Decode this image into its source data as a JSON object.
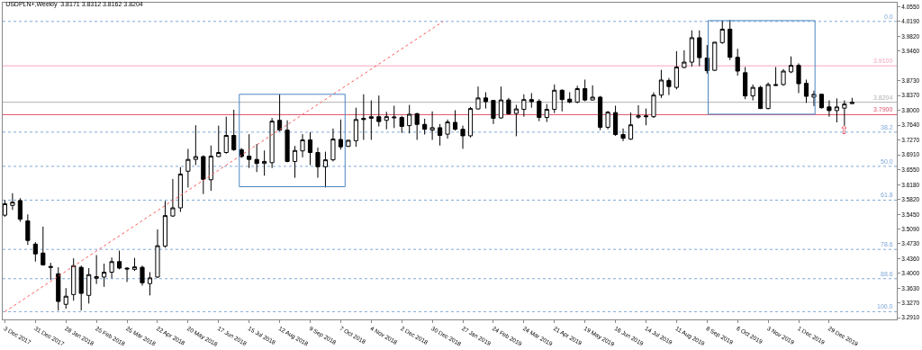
{
  "chart_data": {
    "type": "candlestick",
    "title": "USDPLN+,Weekly  3.8171 3.8312 3.8162 3.8204",
    "color": "#000000",
    "x": [
      "2017-12-03",
      "2017-12-10",
      "2017-12-17",
      "2017-12-24",
      "2017-12-31",
      "2018-01-07",
      "2018-01-14",
      "2018-01-21",
      "2018-01-28",
      "2018-02-04",
      "2018-02-11",
      "2018-02-18",
      "2018-02-25",
      "2018-03-04",
      "2018-03-11",
      "2018-03-18",
      "2018-03-25",
      "2018-04-01",
      "2018-04-08",
      "2018-04-15",
      "2018-04-22",
      "2018-04-29",
      "2018-05-06",
      "2018-05-13",
      "2018-05-20",
      "2018-05-27",
      "2018-06-03",
      "2018-06-10",
      "2018-06-17",
      "2018-06-24",
      "2018-07-01",
      "2018-07-08",
      "2018-07-15",
      "2018-07-22",
      "2018-07-29",
      "2018-08-05",
      "2018-08-12",
      "2018-08-19",
      "2018-08-26",
      "2018-09-02",
      "2018-09-09",
      "2018-09-16",
      "2018-09-23",
      "2018-09-30",
      "2018-10-07",
      "2018-10-14",
      "2018-10-21",
      "2018-10-28",
      "2018-11-04",
      "2018-11-11",
      "2018-11-18",
      "2018-11-25",
      "2018-12-02",
      "2018-12-09",
      "2018-12-16",
      "2018-12-23",
      "2018-12-30",
      "2019-01-06",
      "2019-01-13",
      "2019-01-20",
      "2019-01-27",
      "2019-02-03",
      "2019-02-10",
      "2019-02-17",
      "2019-02-24",
      "2019-03-03",
      "2019-03-10",
      "2019-03-17",
      "2019-03-24",
      "2019-03-31",
      "2019-04-07",
      "2019-04-14",
      "2019-04-21",
      "2019-04-28",
      "2019-05-05",
      "2019-05-12",
      "2019-05-19",
      "2019-05-26",
      "2019-06-02",
      "2019-06-09",
      "2019-06-16",
      "2019-06-23",
      "2019-06-30",
      "2019-07-07",
      "2019-07-14",
      "2019-07-21",
      "2019-07-28",
      "2019-08-04",
      "2019-08-11",
      "2019-08-18",
      "2019-08-25",
      "2019-09-01",
      "2019-09-08",
      "2019-09-15",
      "2019-09-22",
      "2019-09-29",
      "2019-10-06",
      "2019-10-13",
      "2019-10-20",
      "2019-10-27",
      "2019-11-03",
      "2019-11-10",
      "2019-11-17",
      "2019-11-24",
      "2019-12-01",
      "2019-12-08",
      "2019-12-15",
      "2019-12-22",
      "2019-12-29",
      "2020-01-05",
      "2020-01-12",
      "2020-01-19"
    ],
    "ohlc": [
      [
        3.543,
        3.58,
        3.539,
        3.571
      ],
      [
        3.567,
        3.597,
        3.556,
        3.575
      ],
      [
        3.579,
        3.585,
        3.527,
        3.533
      ],
      [
        3.529,
        3.545,
        3.47,
        3.481
      ],
      [
        3.472,
        3.477,
        3.429,
        3.448
      ],
      [
        3.45,
        3.515,
        3.419,
        3.421
      ],
      [
        3.417,
        3.426,
        3.384,
        3.415
      ],
      [
        3.399,
        3.415,
        3.309,
        3.331
      ],
      [
        3.324,
        3.364,
        3.313,
        3.344
      ],
      [
        3.348,
        3.437,
        3.333,
        3.419
      ],
      [
        3.415,
        3.419,
        3.309,
        3.351
      ],
      [
        3.346,
        3.413,
        3.326,
        3.397
      ],
      [
        3.388,
        3.445,
        3.374,
        3.392
      ],
      [
        3.391,
        3.424,
        3.367,
        3.403
      ],
      [
        3.403,
        3.439,
        3.388,
        3.429
      ],
      [
        3.429,
        3.456,
        3.41,
        3.413
      ],
      [
        3.413,
        3.415,
        3.379,
        3.411
      ],
      [
        3.41,
        3.438,
        3.406,
        3.416
      ],
      [
        3.415,
        3.419,
        3.37,
        3.377
      ],
      [
        3.375,
        3.403,
        3.346,
        3.389
      ],
      [
        3.391,
        3.508,
        3.389,
        3.468
      ],
      [
        3.467,
        3.578,
        3.463,
        3.542
      ],
      [
        3.541,
        3.632,
        3.539,
        3.561
      ],
      [
        3.561,
        3.661,
        3.551,
        3.644
      ],
      [
        3.651,
        3.706,
        3.611,
        3.68
      ],
      [
        3.68,
        3.764,
        3.666,
        3.687
      ],
      [
        3.687,
        3.69,
        3.595,
        3.631
      ],
      [
        3.63,
        3.714,
        3.603,
        3.688
      ],
      [
        3.687,
        3.763,
        3.686,
        3.697
      ],
      [
        3.697,
        3.785,
        3.694,
        3.739
      ],
      [
        3.739,
        3.802,
        3.701,
        3.704
      ],
      [
        3.704,
        3.708,
        3.684,
        3.687
      ],
      [
        3.688,
        3.742,
        3.659,
        3.68
      ],
      [
        3.68,
        3.718,
        3.649,
        3.67
      ],
      [
        3.67,
        3.702,
        3.64,
        3.675
      ],
      [
        3.672,
        3.782,
        3.659,
        3.774
      ],
      [
        3.776,
        3.84,
        3.749,
        3.752
      ],
      [
        3.752,
        3.776,
        3.673,
        3.675
      ],
      [
        3.675,
        3.713,
        3.635,
        3.702
      ],
      [
        3.701,
        3.742,
        3.685,
        3.728
      ],
      [
        3.728,
        3.747,
        3.666,
        3.697
      ],
      [
        3.697,
        3.709,
        3.635,
        3.662
      ],
      [
        3.662,
        3.699,
        3.611,
        3.679
      ],
      [
        3.679,
        3.756,
        3.675,
        3.73
      ],
      [
        3.729,
        3.778,
        3.704,
        3.711
      ],
      [
        3.712,
        3.728,
        3.711,
        3.727
      ],
      [
        3.726,
        3.807,
        3.711,
        3.778
      ],
      [
        3.781,
        3.84,
        3.728,
        3.778
      ],
      [
        3.781,
        3.825,
        3.728,
        3.785
      ],
      [
        3.785,
        3.837,
        3.761,
        3.773
      ],
      [
        3.776,
        3.797,
        3.754,
        3.785
      ],
      [
        3.782,
        3.812,
        3.757,
        3.784
      ],
      [
        3.783,
        3.787,
        3.745,
        3.761
      ],
      [
        3.763,
        3.814,
        3.744,
        3.791
      ],
      [
        3.792,
        3.795,
        3.728,
        3.766
      ],
      [
        3.766,
        3.78,
        3.741,
        3.754
      ],
      [
        3.752,
        3.798,
        3.728,
        3.758
      ],
      [
        3.758,
        3.767,
        3.714,
        3.739
      ],
      [
        3.742,
        3.778,
        3.731,
        3.772
      ],
      [
        3.771,
        3.801,
        3.751,
        3.754
      ],
      [
        3.754,
        3.763,
        3.706,
        3.738
      ],
      [
        3.738,
        3.809,
        3.734,
        3.805
      ],
      [
        3.804,
        3.859,
        3.803,
        3.831
      ],
      [
        3.831,
        3.845,
        3.805,
        3.822
      ],
      [
        3.825,
        3.825,
        3.767,
        3.781
      ],
      [
        3.782,
        3.859,
        3.78,
        3.826
      ],
      [
        3.826,
        3.831,
        3.79,
        3.792
      ],
      [
        3.793,
        3.814,
        3.737,
        3.804
      ],
      [
        3.803,
        3.84,
        3.785,
        3.827
      ],
      [
        3.827,
        3.843,
        3.807,
        3.822
      ],
      [
        3.823,
        3.828,
        3.774,
        3.783
      ],
      [
        3.783,
        3.816,
        3.772,
        3.803
      ],
      [
        3.803,
        3.864,
        3.794,
        3.85
      ],
      [
        3.85,
        3.852,
        3.798,
        3.827
      ],
      [
        3.828,
        3.845,
        3.818,
        3.821
      ],
      [
        3.821,
        3.861,
        3.818,
        3.854
      ],
      [
        3.854,
        3.876,
        3.823,
        3.826
      ],
      [
        3.826,
        3.862,
        3.825,
        3.833
      ],
      [
        3.833,
        3.836,
        3.752,
        3.759
      ],
      [
        3.759,
        3.799,
        3.754,
        3.796
      ],
      [
        3.795,
        3.812,
        3.738,
        3.741
      ],
      [
        3.741,
        3.756,
        3.725,
        3.732
      ],
      [
        3.73,
        3.795,
        3.728,
        3.765
      ],
      [
        3.784,
        3.813,
        3.78,
        3.787
      ],
      [
        3.787,
        3.805,
        3.764,
        3.785
      ],
      [
        3.785,
        3.845,
        3.782,
        3.838
      ],
      [
        3.838,
        3.9,
        3.831,
        3.875
      ],
      [
        3.874,
        3.88,
        3.838,
        3.859
      ],
      [
        3.857,
        3.946,
        3.852,
        3.907
      ],
      [
        3.906,
        3.948,
        3.904,
        3.919
      ],
      [
        3.919,
        3.997,
        3.908,
        3.979
      ],
      [
        3.979,
        3.997,
        3.909,
        3.93
      ],
      [
        3.929,
        3.961,
        3.891,
        3.898
      ],
      [
        3.899,
        3.968,
        3.897,
        3.968
      ],
      [
        3.967,
        4.021,
        3.964,
        4.0
      ],
      [
        4.0,
        4.023,
        3.924,
        3.931
      ],
      [
        3.931,
        3.952,
        3.886,
        3.897
      ],
      [
        3.893,
        3.907,
        3.828,
        3.836
      ],
      [
        3.836,
        3.864,
        3.825,
        3.857
      ],
      [
        3.857,
        3.861,
        3.804,
        3.805
      ],
      [
        3.805,
        3.869,
        3.803,
        3.864
      ],
      [
        3.864,
        3.907,
        3.861,
        3.862
      ],
      [
        3.864,
        3.902,
        3.861,
        3.897
      ],
      [
        3.895,
        3.933,
        3.892,
        3.911
      ],
      [
        3.911,
        3.916,
        3.843,
        3.866
      ],
      [
        3.867,
        3.876,
        3.819,
        3.835
      ],
      [
        3.833,
        3.849,
        3.811,
        3.84
      ],
      [
        3.84,
        3.84,
        3.805,
        3.807
      ],
      [
        3.809,
        3.825,
        3.785,
        3.8
      ],
      [
        3.8,
        3.83,
        3.771,
        3.809
      ],
      [
        3.806,
        3.825,
        3.763,
        3.816
      ],
      [
        3.8171,
        3.8312,
        3.8162,
        3.8204
      ]
    ],
    "series": [
      {
        "type": "line",
        "color": "#ff5a5a",
        "line_style": "dotted",
        "x": [
          "2017-12-03",
          "2019-01-09"
        ],
        "values": [
          3.306,
          4.019
        ]
      },
      {
        "type": "line",
        "color": "#4a86c0",
        "line_style": "solid",
        "x": [
          "2018-07-06",
          "2018-07-06",
          "2018-10-11",
          "2018-10-11"
        ],
        "values": [
          3.613,
          3.84,
          3.84,
          3.613
        ]
      },
      {
        "type": "line",
        "color": "#4a86c0",
        "line_style": "solid",
        "x": [
          "2018-07-06",
          "2018-10-11"
        ],
        "values": [
          3.613,
          3.613
        ]
      },
      {
        "type": "line",
        "color": "#4a86c0",
        "line_style": "solid",
        "x": [
          "2019-09-09",
          "2019-09-09",
          "2019-12-16",
          "2019-12-16"
        ],
        "values": [
          3.791,
          4.021,
          4.021,
          3.791
        ]
      },
      {
        "type": "line",
        "color": "#4a86c0",
        "line_style": "solid",
        "x": [
          "2019-09-09",
          "2019-12-16"
        ],
        "values": [
          3.791,
          3.791
        ]
      }
    ],
    "xlim": [
      "2017-12-01",
      "2020-02-29"
    ],
    "xticks": [
      {
        "value": "2017-12-03",
        "label": "3 Dec 2017"
      },
      {
        "value": "2017-12-31",
        "label": "31 Dec 2017"
      },
      {
        "value": "2018-01-28",
        "label": "28 Jan 2018"
      },
      {
        "value": "2018-02-25",
        "label": "25 Feb 2018"
      },
      {
        "value": "2018-03-25",
        "label": "25 Mar 2018"
      },
      {
        "value": "2018-04-22",
        "label": "22 Apr 2018"
      },
      {
        "value": "2018-05-20",
        "label": "20 May 2018"
      },
      {
        "value": "2018-06-17",
        "label": "17 Jun 2018"
      },
      {
        "value": "2018-07-15",
        "label": "15 Jul 2018"
      },
      {
        "value": "2018-08-12",
        "label": "12 Aug 2018"
      },
      {
        "value": "2018-09-09",
        "label": "9 Sep 2018"
      },
      {
        "value": "2018-10-07",
        "label": "7 Oct 2018"
      },
      {
        "value": "2018-11-04",
        "label": "4 Nov 2018"
      },
      {
        "value": "2018-12-02",
        "label": "2 Dec 2018"
      },
      {
        "value": "2018-12-30",
        "label": "30 Dec 2018"
      },
      {
        "value": "2019-01-27",
        "label": "27 Jan 2019"
      },
      {
        "value": "2019-02-24",
        "label": "24 Feb 2019"
      },
      {
        "value": "2019-03-24",
        "label": "24 Mar 2019"
      },
      {
        "value": "2019-04-21",
        "label": "21 Apr 2019"
      },
      {
        "value": "2019-05-19",
        "label": "19 May 2019"
      },
      {
        "value": "2019-06-16",
        "label": "16 Jun 2019"
      },
      {
        "value": "2019-07-14",
        "label": "14 Jul 2019"
      },
      {
        "value": "2019-08-11",
        "label": "11 Aug 2019"
      },
      {
        "value": "2019-09-08",
        "label": "8 Sep 2019"
      },
      {
        "value": "2019-10-06",
        "label": "6 Oct 2019"
      },
      {
        "value": "2019-11-03",
        "label": "3 Nov 2019"
      },
      {
        "value": "2019-12-01",
        "label": "1 Dec 2019"
      },
      {
        "value": "2019-12-29",
        "label": "29 Dec 2019"
      }
    ],
    "ylim": [
      3.287,
      4.065
    ],
    "yticks": [
      {
        "value": 4.055,
        "label": "4.0550"
      },
      {
        "value": 4.019,
        "label": "4.0190"
      },
      {
        "value": 3.982,
        "label": "3.9820"
      },
      {
        "value": 3.946,
        "label": "3.9460"
      },
      {
        "value": 3.873,
        "label": "3.8730"
      },
      {
        "value": 3.837,
        "label": "3.8370"
      },
      {
        "value": 3.8,
        "label": "3.8000"
      },
      {
        "value": 3.764,
        "label": "3.7640"
      },
      {
        "value": 3.727,
        "label": "3.7270"
      },
      {
        "value": 3.691,
        "label": "3.6910"
      },
      {
        "value": 3.655,
        "label": "3.6550"
      },
      {
        "value": 3.618,
        "label": "3.6180"
      },
      {
        "value": 3.582,
        "label": "3.5820"
      },
      {
        "value": 3.545,
        "label": "3.5450"
      },
      {
        "value": 3.509,
        "label": "3.5090"
      },
      {
        "value": 3.473,
        "label": "3.4730"
      },
      {
        "value": 3.436,
        "label": "3.4360"
      },
      {
        "value": 3.4,
        "label": "3.4000"
      },
      {
        "value": 3.363,
        "label": "3.3630"
      },
      {
        "value": 3.327,
        "label": "3.3270"
      },
      {
        "value": 3.291,
        "label": "3.2910"
      }
    ],
    "ref_lines": [
      {
        "axis": "y",
        "value": 3.91,
        "label": "3.9100",
        "color": "#f4a6bd",
        "line_style": "solid"
      },
      {
        "axis": "y",
        "value": 3.79,
        "label": "3.7900",
        "color": "#e0506a",
        "line_style": "solid"
      },
      {
        "axis": "y",
        "value": 3.8204,
        "label": "3.8204",
        "color": "#b0b0b0",
        "line_style": "solid"
      },
      {
        "axis": "y",
        "value": 4.019,
        "color": "#7fa8d8",
        "line_style": "dotted"
      },
      {
        "axis": "y",
        "value": 3.747,
        "color": "#7fa8d8",
        "line_style": "dotted"
      },
      {
        "axis": "y",
        "value": 3.663,
        "color": "#7fa8d8",
        "line_style": "dotted"
      },
      {
        "axis": "y",
        "value": 3.58,
        "color": "#7fa8d8",
        "line_style": "dotted"
      },
      {
        "axis": "y",
        "value": 3.459,
        "color": "#7fa8d8",
        "line_style": "dotted"
      },
      {
        "axis": "y",
        "value": 3.387,
        "color": "#7fa8d8",
        "line_style": "dotted"
      },
      {
        "axis": "y",
        "value": 3.306,
        "color": "#7fa8d8",
        "line_style": "dotted"
      }
    ],
    "annotations": [
      {
        "text": "⇧",
        "x": "2020-01-12",
        "y": 3.752
      },
      {
        "text": "0.0",
        "x": "2020-02-27",
        "y": 4.019
      },
      {
        "text": "38.2",
        "x": "2020-02-27",
        "y": 3.747
      },
      {
        "text": "50.0",
        "x": "2020-02-27",
        "y": 3.663
      },
      {
        "text": "61.8",
        "x": "2020-02-27",
        "y": 3.58
      },
      {
        "text": "78.6",
        "x": "2020-02-27",
        "y": 3.459
      },
      {
        "text": "88.6",
        "x": "2020-02-27",
        "y": 3.387
      },
      {
        "text": "100.0",
        "x": "2020-02-27",
        "y": 3.306
      }
    ],
    "grid": false
  }
}
